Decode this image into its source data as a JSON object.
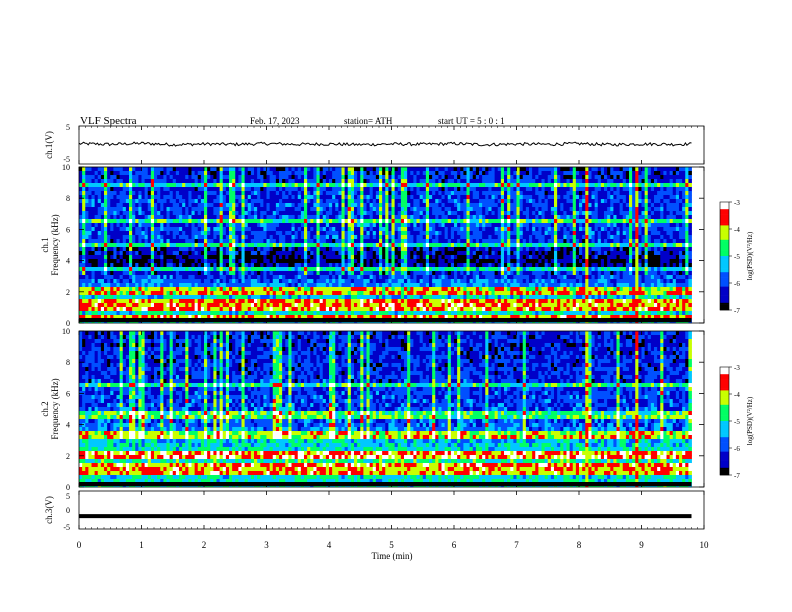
{
  "header": {
    "title": "VLF  Spectra",
    "date": "Feb. 17, 2023",
    "station": "station= ATH",
    "start_ut": "start  UT  =    5  : 0   : 1"
  },
  "colors": {
    "colormap": [
      "#000000",
      "#0000c8",
      "#0050ff",
      "#00c8ff",
      "#00ff64",
      "#c8ff00",
      "#ff0000",
      "#ffffff"
    ]
  },
  "chart_data": [
    {
      "type": "line",
      "name": "ch1-waveform",
      "ylabel": "ch.1(V)",
      "ylim": [
        -5,
        5
      ],
      "yticks": [
        "5",
        "-5"
      ],
      "x": [
        0,
        0.5,
        1,
        1.5,
        2,
        2.5,
        3,
        3.5,
        4,
        4.5,
        5,
        5.5,
        6,
        6.5,
        7,
        7.5,
        8,
        8.5,
        9,
        9.5,
        9.8
      ],
      "values": [
        0.4,
        0.2,
        0.5,
        0.1,
        0.3,
        0.2,
        0.4,
        0.2,
        0.3,
        0.1,
        0.3,
        0.2,
        0.4,
        0.1,
        0.3,
        0.2,
        0.4,
        0.1,
        0.3,
        0.2,
        0.3
      ]
    },
    {
      "type": "heatmap",
      "name": "ch1-spectrogram",
      "ylabel_top": "ch.1",
      "ylabel": "Frequency  (kHz)",
      "ylim": [
        0,
        10
      ],
      "yticks": [
        "0",
        "2",
        "4",
        "6",
        "8",
        "10"
      ],
      "xlim": [
        0,
        9.8
      ],
      "colorbar": {
        "label": "log(PSD)(V²/Hz)",
        "ticks": [
          "-3",
          "-4",
          "-5",
          "-6",
          "-7"
        ],
        "range": [
          -7,
          -3
        ]
      },
      "background_level_by_frequency_khz": [
        {
          "f": 0.0,
          "level": -5.2
        },
        {
          "f": 1.0,
          "level": -5.0
        },
        {
          "f": 2.0,
          "level": -5.3
        },
        {
          "f": 3.0,
          "level": -6.0
        },
        {
          "f": 4.0,
          "level": -6.8
        },
        {
          "f": 5.0,
          "level": -6.2
        },
        {
          "f": 6.0,
          "level": -6.0
        },
        {
          "f": 8.0,
          "level": -6.1
        },
        {
          "f": 10.0,
          "level": -6.3
        }
      ],
      "lines_khz": [
        0.4,
        0.8,
        1.3,
        1.9,
        2.2,
        3.5,
        4.9,
        6.5,
        8.9
      ],
      "strong_bursts_min": [
        8.1,
        8.9
      ]
    },
    {
      "type": "heatmap",
      "name": "ch2-spectrogram",
      "ylabel_top": "ch.2",
      "ylabel": "Frequency  (kHz)",
      "ylim": [
        0,
        10
      ],
      "yticks": [
        "0",
        "2",
        "4",
        "6",
        "8",
        "10"
      ],
      "xlim": [
        0,
        9.8
      ],
      "colorbar": {
        "label": "log(PSD)(V²/Hz)",
        "ticks": [
          "-3",
          "-4",
          "-5",
          "-6",
          "-7"
        ],
        "range": [
          -7,
          -3
        ]
      },
      "background_level_by_frequency_khz": [
        {
          "f": 0.0,
          "level": -5.0
        },
        {
          "f": 1.0,
          "level": -5.1
        },
        {
          "f": 2.0,
          "level": -4.8
        },
        {
          "f": 3.0,
          "level": -5.3
        },
        {
          "f": 4.0,
          "level": -5.8
        },
        {
          "f": 5.0,
          "level": -6.0
        },
        {
          "f": 6.0,
          "level": -6.1
        },
        {
          "f": 8.0,
          "level": -6.2
        },
        {
          "f": 10.0,
          "level": -6.3
        }
      ],
      "lines_khz": [
        0.8,
        1.3,
        1.9,
        2.2,
        3.2,
        3.5,
        4.6,
        6.5
      ],
      "strong_bursts_min": [
        8.1,
        8.9
      ]
    },
    {
      "type": "line",
      "name": "ch3-waveform",
      "ylabel": "ch.3(V)",
      "ylim": [
        -5,
        5
      ],
      "yticks": [
        "5",
        "0",
        "-5"
      ],
      "x": [
        0,
        9.8
      ],
      "values": [
        -1.8,
        -1.8
      ],
      "xlabel": "Time  (min)",
      "xlim": [
        0,
        10
      ],
      "xticks": [
        "0",
        "1",
        "2",
        "3",
        "4",
        "5",
        "6",
        "7",
        "8",
        "9",
        "10"
      ]
    }
  ]
}
